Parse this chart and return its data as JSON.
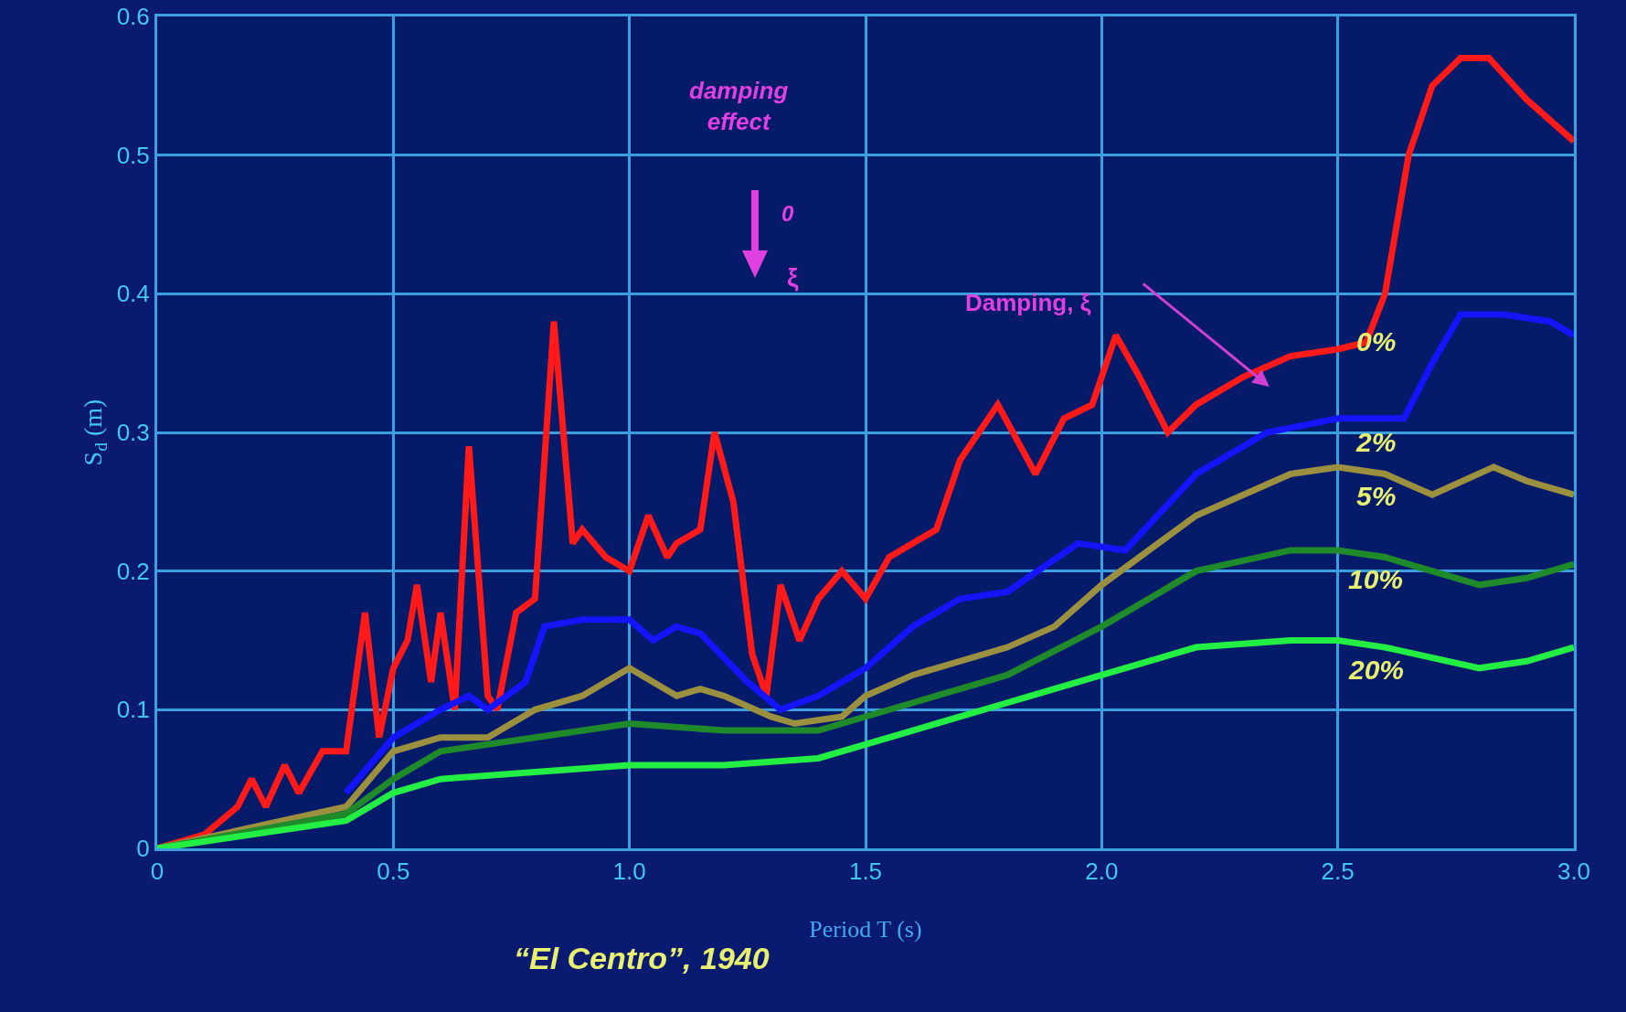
{
  "chart_data": {
    "type": "line",
    "xlabel": "Period T (s)",
    "ylabel": "S$_{d}$ (m)",
    "xlim": [
      0,
      3
    ],
    "xticks": [
      0,
      0.5,
      {
        "value": 1,
        "label": "1.0"
      },
      1.5,
      {
        "value": 2,
        "label": "2.0"
      },
      2.5,
      {
        "value": 3,
        "label": "3.0"
      }
    ],
    "ylim": [
      0,
      0.6
    ],
    "yticks": [
      0,
      0.1,
      0.2,
      0.3,
      0.4,
      0.5,
      0.6
    ],
    "grid": true,
    "legend": false,
    "marker": "none",
    "line_style": "solid",
    "annotations": [
      "damping effect",
      "0",
      "ξ",
      "Damping, ξ",
      "“El Centro”, 1940"
    ],
    "series": [
      {
        "name": "0%",
        "color": "#ff1a1a",
        "x": [
          0,
          0.1,
          0.17,
          0.2,
          0.23,
          0.27,
          0.3,
          0.35,
          0.4,
          0.44,
          0.47,
          0.5,
          0.53,
          0.55,
          0.58,
          0.6,
          0.63,
          0.66,
          0.7,
          0.72,
          0.76,
          0.8,
          0.84,
          0.88,
          0.9,
          0.95,
          1.0,
          1.04,
          1.08,
          1.1,
          1.15,
          1.18,
          1.22,
          1.26,
          1.29,
          1.32,
          1.36,
          1.4,
          1.45,
          1.5,
          1.55,
          1.6,
          1.65,
          1.7,
          1.78,
          1.86,
          1.92,
          1.98,
          2.03,
          2.08,
          2.14,
          2.2,
          2.3,
          2.4,
          2.5,
          2.56,
          2.6,
          2.65,
          2.7,
          2.76,
          2.82,
          2.9,
          3.0
        ],
        "values": [
          0,
          0.01,
          0.03,
          0.05,
          0.03,
          0.06,
          0.04,
          0.07,
          0.07,
          0.17,
          0.08,
          0.13,
          0.15,
          0.19,
          0.12,
          0.17,
          0.1,
          0.29,
          0.11,
          0.1,
          0.17,
          0.18,
          0.38,
          0.22,
          0.23,
          0.21,
          0.2,
          0.24,
          0.21,
          0.22,
          0.23,
          0.3,
          0.25,
          0.14,
          0.11,
          0.19,
          0.15,
          0.18,
          0.2,
          0.18,
          0.21,
          0.22,
          0.23,
          0.28,
          0.32,
          0.27,
          0.31,
          0.32,
          0.37,
          0.34,
          0.3,
          0.32,
          0.34,
          0.355,
          0.36,
          0.365,
          0.4,
          0.5,
          0.55,
          0.57,
          0.57,
          0.54,
          0.51
        ]
      },
      {
        "name": "2%",
        "color": "#1414ff",
        "x": [
          0.4,
          0.5,
          0.6,
          0.66,
          0.7,
          0.78,
          0.82,
          0.9,
          1.0,
          1.05,
          1.1,
          1.15,
          1.25,
          1.32,
          1.4,
          1.5,
          1.6,
          1.7,
          1.8,
          1.95,
          2.05,
          2.2,
          2.35,
          2.5,
          2.64,
          2.7,
          2.76,
          2.85,
          2.95,
          3.0
        ],
        "values": [
          0.04,
          0.08,
          0.1,
          0.11,
          0.1,
          0.12,
          0.16,
          0.165,
          0.165,
          0.15,
          0.16,
          0.155,
          0.12,
          0.1,
          0.11,
          0.13,
          0.16,
          0.18,
          0.185,
          0.22,
          0.215,
          0.27,
          0.3,
          0.31,
          0.31,
          0.35,
          0.385,
          0.385,
          0.38,
          0.37
        ]
      },
      {
        "name": "5%",
        "color": "#9a9040",
        "x": [
          0,
          0.4,
          0.5,
          0.6,
          0.7,
          0.8,
          0.9,
          1.0,
          1.05,
          1.1,
          1.15,
          1.2,
          1.3,
          1.35,
          1.45,
          1.5,
          1.6,
          1.8,
          1.9,
          2.0,
          2.2,
          2.4,
          2.5,
          2.6,
          2.7,
          2.83,
          2.9,
          3.0
        ],
        "values": [
          0,
          0.03,
          0.07,
          0.08,
          0.08,
          0.1,
          0.11,
          0.13,
          0.12,
          0.11,
          0.115,
          0.11,
          0.095,
          0.09,
          0.095,
          0.11,
          0.125,
          0.145,
          0.16,
          0.19,
          0.24,
          0.27,
          0.275,
          0.27,
          0.255,
          0.275,
          0.265,
          0.255
        ]
      },
      {
        "name": "10%",
        "color": "#1f8a2a",
        "x": [
          0,
          0.4,
          0.5,
          0.6,
          0.8,
          1.0,
          1.2,
          1.4,
          1.6,
          1.8,
          2.0,
          2.2,
          2.4,
          2.5,
          2.6,
          2.8,
          2.9,
          3.0
        ],
        "values": [
          0,
          0.025,
          0.05,
          0.07,
          0.08,
          0.09,
          0.085,
          0.085,
          0.105,
          0.125,
          0.16,
          0.2,
          0.215,
          0.215,
          0.21,
          0.19,
          0.195,
          0.205
        ]
      },
      {
        "name": "20%",
        "color": "#22ee44",
        "x": [
          0,
          0.4,
          0.5,
          0.6,
          0.8,
          1.0,
          1.2,
          1.4,
          1.6,
          1.8,
          2.0,
          2.2,
          2.4,
          2.5,
          2.6,
          2.8,
          2.9,
          3.0
        ],
        "values": [
          0,
          0.02,
          0.04,
          0.05,
          0.055,
          0.06,
          0.06,
          0.065,
          0.085,
          0.105,
          0.125,
          0.145,
          0.15,
          0.15,
          0.145,
          0.13,
          0.135,
          0.145
        ]
      }
    ]
  }
}
